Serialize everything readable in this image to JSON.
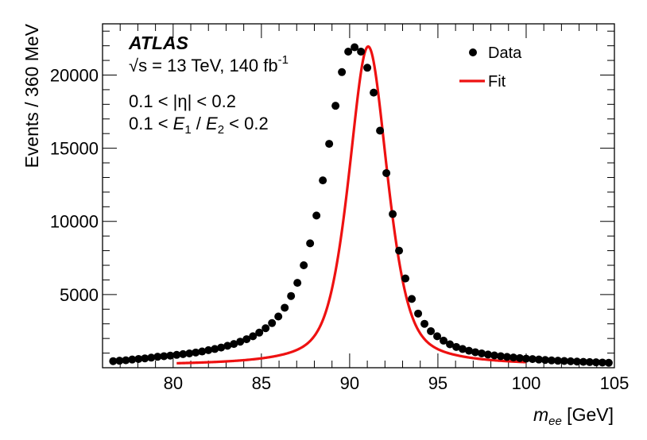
{
  "chart_data": {
    "type": "scatter",
    "experiment": "ATLAS",
    "energy_text": "√s = 13 TeV, 140 fb",
    "lumi_exponent": "-1",
    "eta_cut": "0.1 < |η| < 0.2",
    "ratio_cut": {
      "prefix": "0.1 < ",
      "e1": "E",
      "sub1": "1",
      "slash": " / ",
      "e2": "E",
      "sub2": "2",
      "suffix": " < 0.2"
    },
    "ylabel": "Events / 360 MeV",
    "xlabel_symbol": "m",
    "xlabel_sub": "ee",
    "xlabel_unit": " [GeV]",
    "xlim": [
      76.0,
      105.0
    ],
    "ylim": [
      0,
      23500
    ],
    "xticks": [
      80,
      85,
      90,
      95,
      100,
      105
    ],
    "yticks": [
      5000,
      10000,
      15000,
      20000
    ],
    "legend": {
      "data": "Data",
      "fit": "Fit"
    },
    "colors": {
      "data": "#000000",
      "fit": "#ee1111"
    },
    "series": [
      {
        "name": "Data",
        "x": [
          76.6,
          76.96,
          77.32,
          77.68,
          78.04,
          78.4,
          78.76,
          79.12,
          79.48,
          79.84,
          80.2,
          80.56,
          80.92,
          81.28,
          81.64,
          82.0,
          82.36,
          82.72,
          83.08,
          83.44,
          83.8,
          84.16,
          84.52,
          84.88,
          85.24,
          85.6,
          85.96,
          86.32,
          86.68,
          87.04,
          87.4,
          87.76,
          88.12,
          88.48,
          88.84,
          89.2,
          89.56,
          89.92,
          90.28,
          90.64,
          91.0,
          91.36,
          91.72,
          92.08,
          92.44,
          92.8,
          93.16,
          93.52,
          93.88,
          94.24,
          94.6,
          94.96,
          95.32,
          95.68,
          96.04,
          96.4,
          96.76,
          97.12,
          97.48,
          97.84,
          98.2,
          98.56,
          98.92,
          99.28,
          99.64,
          100.0,
          100.36,
          100.72,
          101.08,
          101.44,
          101.8,
          102.16,
          102.52,
          102.88,
          103.24,
          103.6,
          103.96,
          104.32,
          104.68
        ],
        "y": [
          450,
          480,
          510,
          560,
          600,
          640,
          690,
          750,
          790,
          830,
          880,
          930,
          980,
          1040,
          1110,
          1200,
          1280,
          1380,
          1500,
          1620,
          1780,
          1950,
          2150,
          2400,
          2700,
          3050,
          3500,
          4100,
          4900,
          5800,
          7000,
          8500,
          10400,
          12800,
          15300,
          17900,
          20200,
          21600,
          21900,
          21600,
          20500,
          18800,
          16200,
          13300,
          10500,
          8000,
          6100,
          4700,
          3700,
          3000,
          2500,
          2150,
          1850,
          1600,
          1420,
          1280,
          1160,
          1060,
          980,
          900,
          840,
          790,
          740,
          700,
          660,
          620,
          590,
          560,
          530,
          500,
          480,
          460,
          440,
          420,
          400,
          385,
          370,
          355,
          340
        ]
      },
      {
        "name": "Fit",
        "x_range": [
          80.2,
          100.0
        ],
        "model": {
          "mean": 91.05,
          "sigma": 1.15,
          "gamma": 2.5,
          "amplitude": 21950,
          "background": 150
        }
      }
    ]
  }
}
